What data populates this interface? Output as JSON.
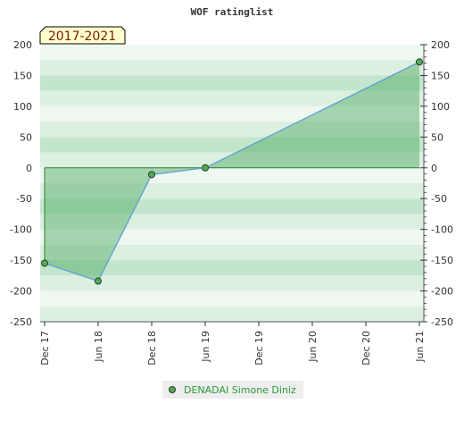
{
  "chart_data": {
    "type": "area",
    "title": "WOF ratinglist",
    "badge": "2017-2021",
    "xlabel": "",
    "ylabel": "",
    "x_tick_labels": [
      "Dec 17",
      "Jun 18",
      "Dec 18",
      "Jun 19",
      "Dec 19",
      "Jun 20",
      "Dec 20",
      "Jun 21"
    ],
    "ylim": [
      -250,
      200
    ],
    "y_ticks": [
      200,
      150,
      100,
      50,
      0,
      -50,
      -100,
      -150,
      -200,
      -250
    ],
    "y_tick_labels": [
      "200",
      "150",
      "100",
      "50",
      "0",
      "-50",
      "-100",
      "-150",
      "-200",
      "-250"
    ],
    "grid": true,
    "legend_position": "bottom-center",
    "series": [
      {
        "name": "DENADAI Simone Diniz",
        "x": [
          "Dec 17",
          "Jun 18",
          "Dec 18",
          "Jun 19",
          "Jun 21"
        ],
        "values": [
          -155,
          -184,
          -11,
          0,
          172
        ]
      }
    ],
    "colors": {
      "line": "#5a9fd4",
      "area_fill": "#4aa860",
      "marker_fill": "#4caf50",
      "band_light": "#eef7f0",
      "band_mid": "#dcefe1",
      "band_dark": "#c4e5cd"
    }
  }
}
